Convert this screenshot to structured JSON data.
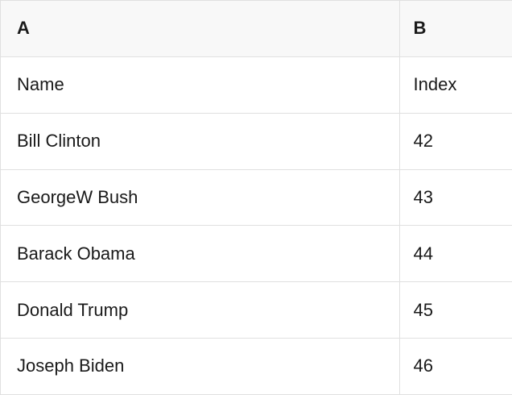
{
  "table": {
    "columns": [
      {
        "key": "A",
        "label": "A"
      },
      {
        "key": "B",
        "label": "B"
      }
    ],
    "rows": [
      {
        "a": "Name",
        "b": "Index"
      },
      {
        "a": "Bill Clinton",
        "b": "42"
      },
      {
        "a": "GeorgeW Bush",
        "b": "43"
      },
      {
        "a": "Barack Obama",
        "b": "44"
      },
      {
        "a": "Donald Trump",
        "b": "45"
      },
      {
        "a": "Joseph Biden",
        "b": "46"
      }
    ],
    "colors": {
      "header_bg": "#f8f8f8",
      "border": "#e0e0e0",
      "text": "#1a1a1a",
      "row_bg": "#ffffff"
    }
  }
}
